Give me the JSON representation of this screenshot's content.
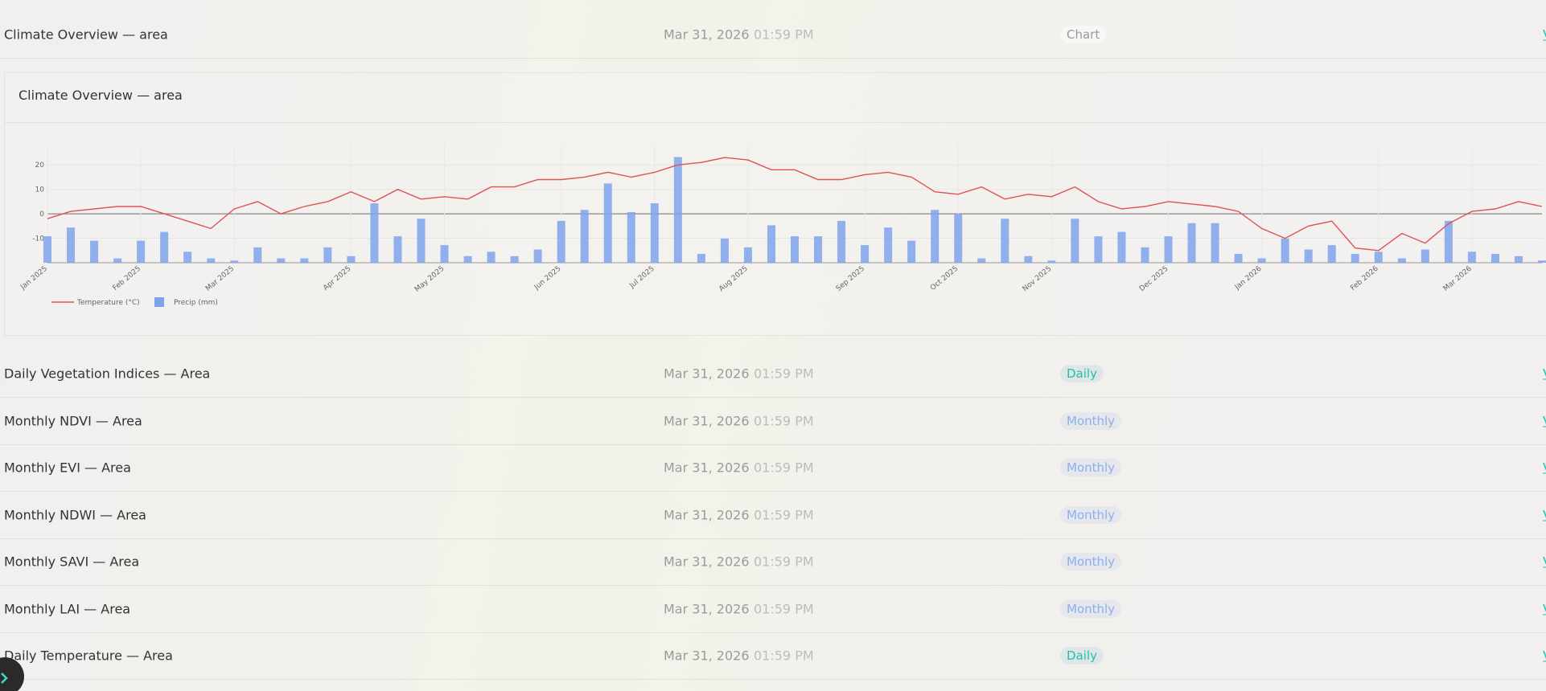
{
  "rows_top": [
    {
      "name": "Climate Overview — area",
      "date": "Mar 31, 2026",
      "time": "01:59 PM",
      "badge": "Chart",
      "action": "View"
    }
  ],
  "chart_card": {
    "title": "Climate Overview — area"
  },
  "chart_data": {
    "type": "combo",
    "categories": [
      "Jan 2025",
      null,
      null,
      null,
      "Feb 2025",
      null,
      null,
      null,
      "Mar 2025",
      null,
      null,
      null,
      null,
      "Apr 2025",
      null,
      null,
      null,
      "May 2025",
      null,
      null,
      null,
      null,
      "Jun 2025",
      null,
      null,
      null,
      "Jul 2025",
      null,
      null,
      null,
      "Aug 2025",
      null,
      null,
      null,
      null,
      "Sep 2025",
      null,
      null,
      null,
      "Oct 2025",
      null,
      null,
      null,
      "Nov 2025",
      null,
      null,
      null,
      null,
      "Dec 2025",
      null,
      null,
      null,
      "Jan 2026",
      null,
      null,
      null,
      null,
      "Feb 2026",
      null,
      null,
      null,
      "Mar 2026",
      null,
      null,
      null
    ],
    "series": [
      {
        "name": "Temperature (°C)",
        "type": "line",
        "color": "#e05252",
        "values": [
          -2,
          1,
          2,
          3,
          3,
          0,
          -3,
          -6,
          2,
          5,
          0,
          3,
          5,
          9,
          5,
          10,
          6,
          7,
          6,
          11,
          11,
          14,
          14,
          15,
          17,
          15,
          17,
          20,
          21,
          23,
          22,
          18,
          18,
          14,
          14,
          16,
          17,
          15,
          9,
          8,
          11,
          6,
          8,
          7,
          11,
          5,
          2,
          3,
          5,
          4,
          3,
          1,
          -6,
          -10,
          -5,
          -3,
          -14,
          -15,
          -8,
          -12,
          -4,
          1,
          2,
          5,
          3
        ]
      },
      {
        "name": "Precip (mm)",
        "type": "bar",
        "axis": "y2",
        "color": "#7ea3ec",
        "values": [
          12,
          16,
          10,
          2,
          10,
          14,
          5,
          2,
          1,
          7,
          2,
          2,
          7,
          3,
          27,
          12,
          20,
          8,
          3,
          5,
          3,
          6,
          19,
          24,
          36,
          23,
          27,
          48,
          4,
          11,
          7,
          17,
          12,
          12,
          19,
          8,
          16,
          10,
          24,
          22,
          2,
          20,
          3,
          1,
          20,
          12,
          14,
          7,
          12,
          18,
          18,
          4,
          2,
          11,
          6,
          8,
          4,
          5,
          2,
          6,
          19,
          5,
          4,
          3,
          1
        ]
      }
    ],
    "ylim": [
      -20,
      25
    ],
    "yticks": [
      -10,
      0,
      10,
      20
    ],
    "y2lim": [
      0,
      50
    ],
    "grid": true,
    "legend": "bottom-left"
  },
  "rows": [
    {
      "name": "Daily Vegetation Indices — Area",
      "date": "Mar 31, 2026",
      "time": "01:59 PM",
      "badge": "Daily",
      "action": "View"
    },
    {
      "name": "Monthly NDVI — Area",
      "date": "Mar 31, 2026",
      "time": "01:59 PM",
      "badge": "Monthly",
      "action": "View"
    },
    {
      "name": "Monthly EVI — Area",
      "date": "Mar 31, 2026",
      "time": "01:59 PM",
      "badge": "Monthly",
      "action": "View"
    },
    {
      "name": "Monthly NDWI — Area",
      "date": "Mar 31, 2026",
      "time": "01:59 PM",
      "badge": "Monthly",
      "action": "View"
    },
    {
      "name": "Monthly SAVI — Area",
      "date": "Mar 31, 2026",
      "time": "01:59 PM",
      "badge": "Monthly",
      "action": "View"
    },
    {
      "name": "Monthly LAI — Area",
      "date": "Mar 31, 2026",
      "time": "01:59 PM",
      "badge": "Monthly",
      "action": "View"
    },
    {
      "name": "Daily Temperature — Area",
      "date": "Mar 31, 2026",
      "time": "01:59 PM",
      "badge": "Daily",
      "action": "View"
    }
  ]
}
